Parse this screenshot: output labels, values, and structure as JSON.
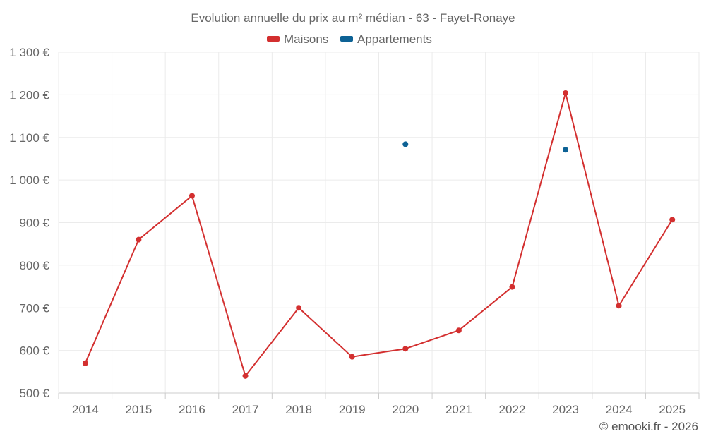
{
  "chart_data": {
    "type": "line",
    "title": "Evolution annuelle du prix au m² médian - 63 - Fayet-Ronaye",
    "categories": [
      "2014",
      "2015",
      "2016",
      "2017",
      "2018",
      "2019",
      "2020",
      "2021",
      "2022",
      "2023",
      "2024",
      "2025"
    ],
    "series": [
      {
        "name": "Maisons",
        "color": "#d32f2f",
        "values": [
          570,
          860,
          963,
          540,
          700,
          585,
          604,
          647,
          749,
          1204,
          705,
          907
        ]
      },
      {
        "name": "Appartements",
        "color": "#0d6295",
        "values": [
          null,
          null,
          null,
          null,
          null,
          null,
          1084,
          null,
          null,
          1071,
          null,
          null
        ]
      }
    ],
    "ylim": [
      500,
      1300
    ],
    "ytick_step": 100,
    "ytick_labels": [
      "500 €",
      "600 €",
      "700 €",
      "800 €",
      "900 €",
      "1 000 €",
      "1 100 €",
      "1 200 €",
      "1 300 €"
    ],
    "xlabel": "",
    "ylabel": "",
    "grid": true,
    "legend_position": "top-center"
  },
  "credit": "© emooki.fr - 2026"
}
